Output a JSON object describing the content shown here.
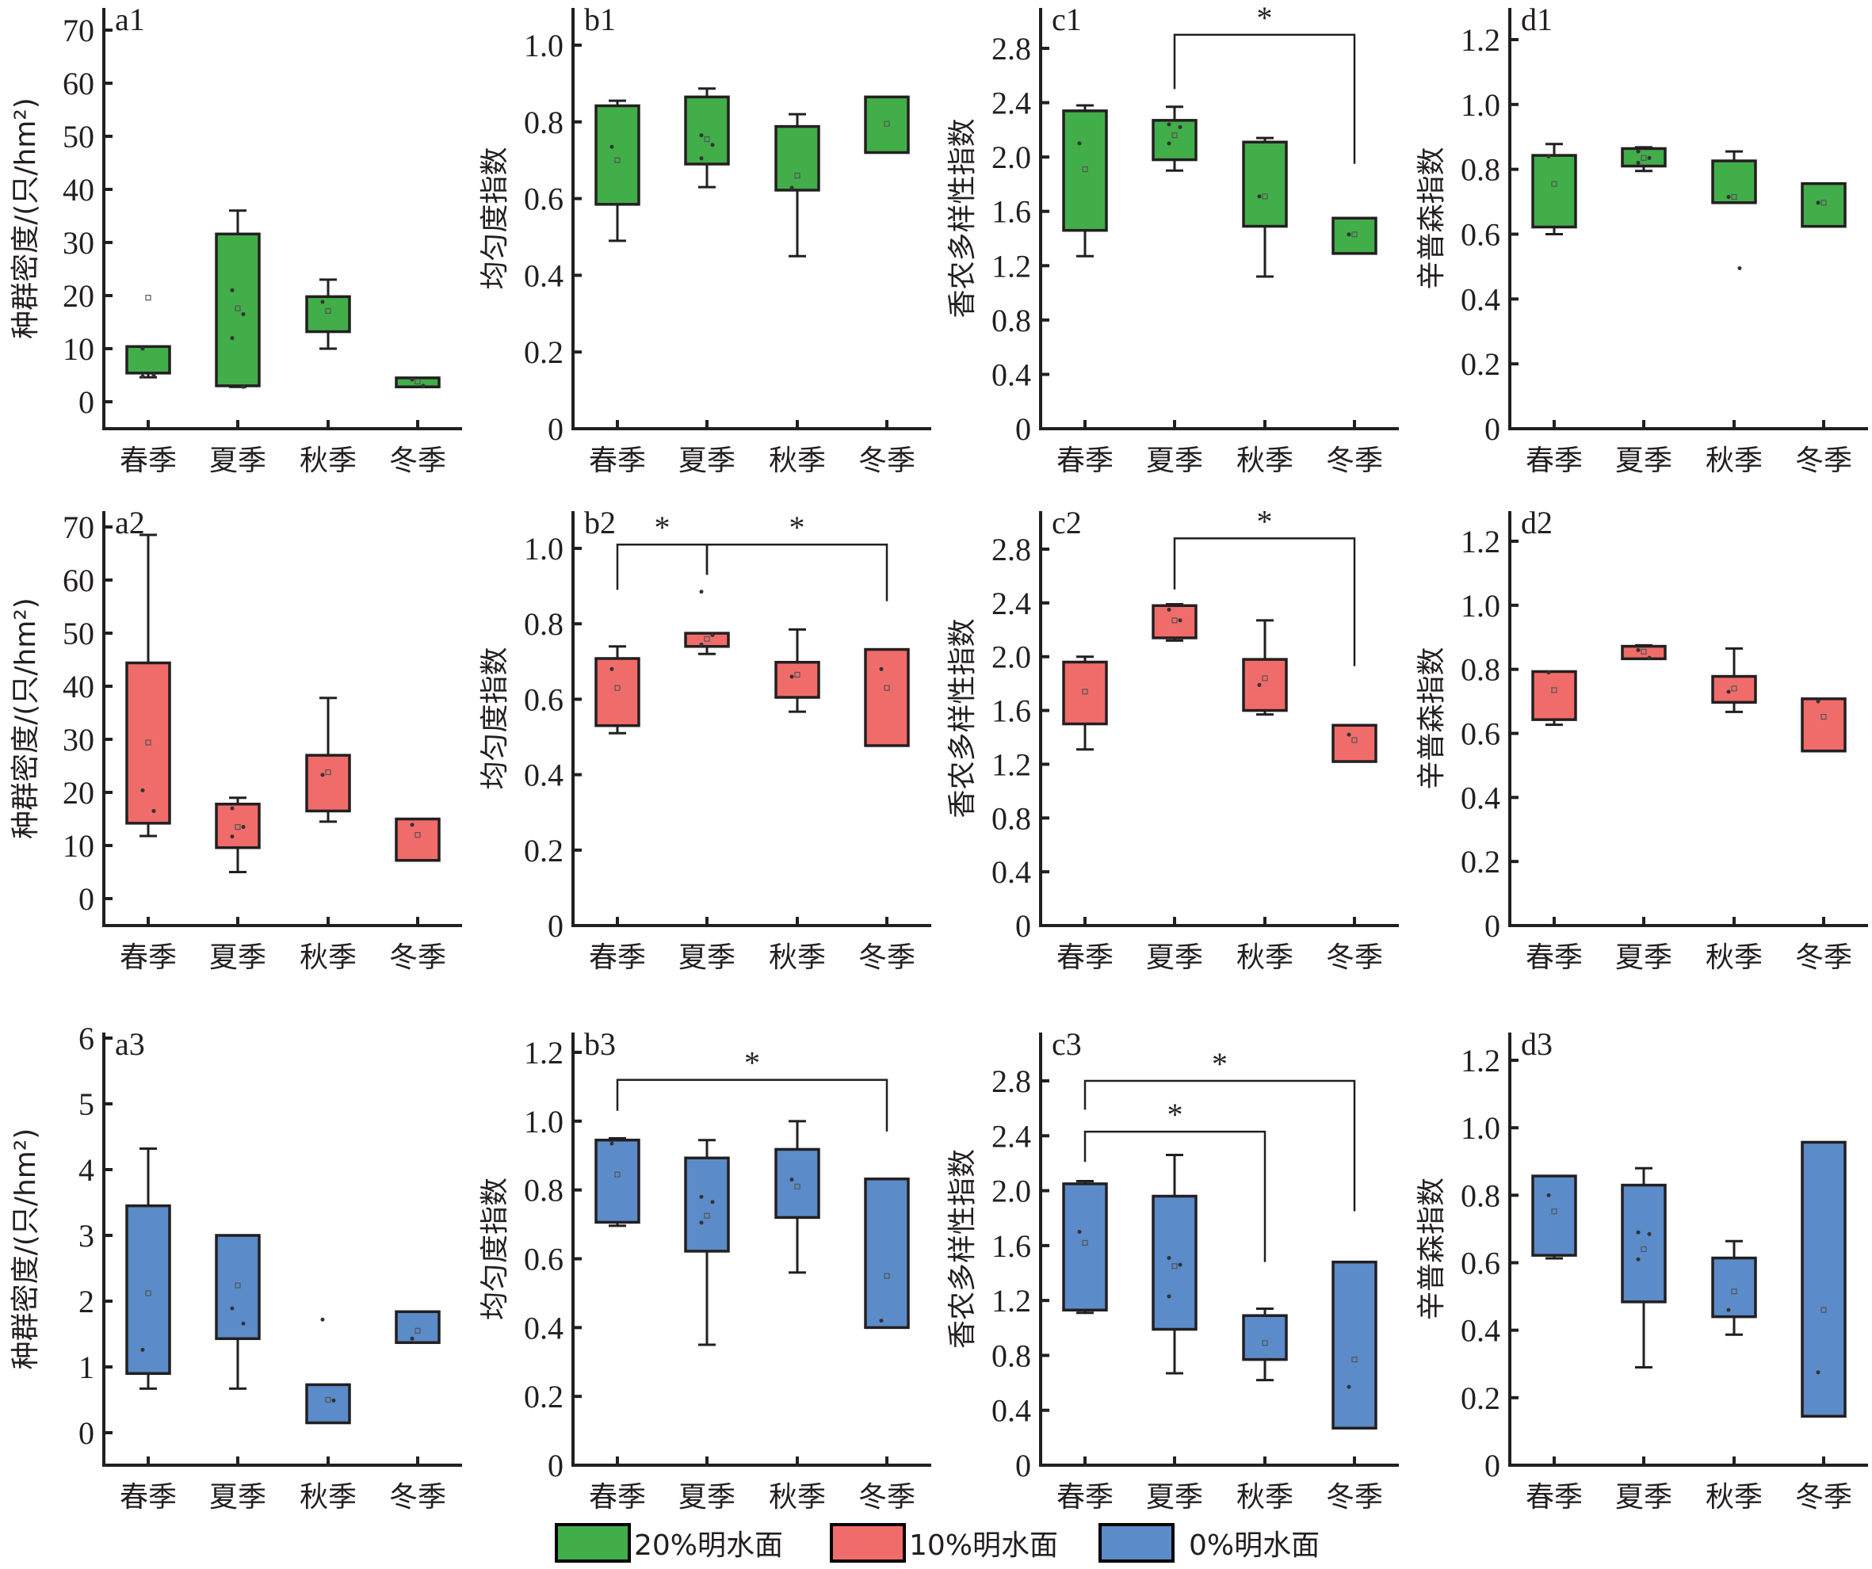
{
  "figure": {
    "categories": [
      "春季",
      "夏季",
      "秋季",
      "冬季"
    ],
    "legend": [
      {
        "label": "20%明水面",
        "color": "#41ae49"
      },
      {
        "label": "10%明水面",
        "color": "#f06c6a"
      },
      {
        "label": "0%明水面",
        "color": "#5b8bc9"
      }
    ],
    "ylabels": {
      "a": "种群密度/(只/hm²)",
      "b": "均匀度指数",
      "c": "香农多样性指数",
      "d": "辛普森指数"
    }
  },
  "chart_data": [
    {
      "id": "a1",
      "type": "box",
      "panel_label": "a1",
      "metric": "a",
      "group": 0,
      "ylabel": "种群密度/(只/hm²)",
      "ylim": [
        -5,
        72
      ],
      "yticks": [
        0,
        10,
        20,
        30,
        40,
        50,
        60,
        70
      ],
      "yticklabels": [
        "0",
        "10",
        "20",
        "30",
        "40",
        "50",
        "60",
        "70"
      ],
      "categories": [
        "春季",
        "夏季",
        "秋季",
        "冬季"
      ],
      "boxes": [
        {
          "q1": 5.4,
          "q3": 10.4,
          "whisker_low": 4.6,
          "whisker_high": 10.4,
          "mean": 19.6,
          "points": [
            10.0,
            5.0,
            4.8
          ]
        },
        {
          "q1": 3.0,
          "q3": 31.6,
          "whisker_low": 2.8,
          "whisker_high": 36.0,
          "mean": 17.6,
          "points": [
            21.0,
            16.5,
            12.0,
            2.8
          ]
        },
        {
          "q1": 13.2,
          "q3": 19.8,
          "whisker_low": 10.0,
          "whisker_high": 23.0,
          "mean": 17.1,
          "points": [
            18.8
          ]
        },
        {
          "q1": 2.8,
          "q3": 4.5,
          "whisker_low": 2.8,
          "whisker_high": 4.5,
          "mean": 3.8,
          "points": [
            4.2,
            3.0
          ]
        }
      ],
      "significance": []
    },
    {
      "id": "b1",
      "type": "box",
      "panel_label": "b1",
      "metric": "b",
      "group": 0,
      "ylabel": "均匀度指数",
      "ylim": [
        0,
        1.1
      ],
      "yticks": [
        0,
        0.2,
        0.4,
        0.6,
        0.8,
        1.0
      ],
      "yticklabels": [
        "0",
        "0.2",
        "0.4",
        "0.6",
        "0.8",
        "1.0"
      ],
      "categories": [
        "春季",
        "夏季",
        "秋季",
        "冬季"
      ],
      "boxes": [
        {
          "q1": 0.585,
          "q3": 0.842,
          "whisker_low": 0.49,
          "whisker_high": 0.855,
          "mean": 0.7,
          "points": [
            0.735
          ]
        },
        {
          "q1": 0.69,
          "q3": 0.865,
          "whisker_low": 0.63,
          "whisker_high": 0.887,
          "mean": 0.755,
          "points": [
            0.765,
            0.74,
            0.705
          ]
        },
        {
          "q1": 0.622,
          "q3": 0.788,
          "whisker_low": 0.45,
          "whisker_high": 0.82,
          "mean": 0.66,
          "points": [
            0.628
          ]
        },
        {
          "q1": 0.72,
          "q3": 0.865,
          "whisker_low": 0.72,
          "whisker_high": 0.865,
          "mean": 0.795,
          "points": []
        }
      ],
      "significance": []
    },
    {
      "id": "c1",
      "type": "box",
      "panel_label": "c1",
      "metric": "c",
      "group": 0,
      "ylabel": "香农多样性指数",
      "ylim": [
        0,
        3.1
      ],
      "yticks": [
        0,
        0.4,
        0.8,
        1.2,
        1.6,
        2.0,
        2.4,
        2.8
      ],
      "yticklabels": [
        "0",
        "0.4",
        "0.8",
        "1.2",
        "1.6",
        "2.0",
        "2.4",
        "2.8"
      ],
      "categories": [
        "春季",
        "夏季",
        "秋季",
        "冬季"
      ],
      "boxes": [
        {
          "q1": 1.46,
          "q3": 2.34,
          "whisker_low": 1.27,
          "whisker_high": 2.38,
          "mean": 1.91,
          "points": [
            2.1
          ]
        },
        {
          "q1": 1.98,
          "q3": 2.27,
          "whisker_low": 1.9,
          "whisker_high": 2.37,
          "mean": 2.16,
          "points": [
            2.24,
            2.22,
            2.1
          ]
        },
        {
          "q1": 1.49,
          "q3": 2.11,
          "whisker_low": 1.12,
          "whisker_high": 2.14,
          "mean": 1.71,
          "points": [
            1.71
          ]
        },
        {
          "q1": 1.29,
          "q3": 1.55,
          "whisker_low": 1.29,
          "whisker_high": 1.55,
          "mean": 1.43,
          "points": [
            1.43
          ]
        }
      ],
      "significance": [
        {
          "from": 1,
          "to": 3,
          "label": "*",
          "level": 2.9,
          "left_end": 2.5,
          "right_end": 1.95
        }
      ]
    },
    {
      "id": "d1",
      "type": "box",
      "panel_label": "d1",
      "metric": "d",
      "group": 0,
      "ylabel": "辛普森指数",
      "ylim": [
        0,
        1.3
      ],
      "yticks": [
        0,
        0.2,
        0.4,
        0.6,
        0.8,
        1.0,
        1.2
      ],
      "yticklabels": [
        "0",
        "0.2",
        "0.4",
        "0.6",
        "0.8",
        "1.0",
        "1.2"
      ],
      "categories": [
        "春季",
        "夏季",
        "秋季",
        "冬季"
      ],
      "boxes": [
        {
          "q1": 0.622,
          "q3": 0.843,
          "whisker_low": 0.6,
          "whisker_high": 0.878,
          "mean": 0.755,
          "points": [
            0.84
          ]
        },
        {
          "q1": 0.81,
          "q3": 0.864,
          "whisker_low": 0.795,
          "whisker_high": 0.868,
          "mean": 0.835,
          "points": [
            0.855,
            0.835,
            0.82
          ]
        },
        {
          "q1": 0.697,
          "q3": 0.826,
          "whisker_low": 0.697,
          "whisker_high": 0.855,
          "mean": 0.715,
          "points": [
            0.715,
            0.495
          ]
        },
        {
          "q1": 0.624,
          "q3": 0.756,
          "whisker_low": 0.624,
          "whisker_high": 0.756,
          "mean": 0.697,
          "points": [
            0.697
          ]
        }
      ],
      "significance": []
    },
    {
      "id": "a2",
      "type": "box",
      "panel_label": "a2",
      "metric": "a",
      "group": 1,
      "ylabel": "种群密度/(只/hm²)",
      "ylim": [
        -5,
        72
      ],
      "yticks": [
        0,
        10,
        20,
        30,
        40,
        50,
        60,
        70
      ],
      "yticklabels": [
        "0",
        "10",
        "20",
        "30",
        "40",
        "50",
        "60",
        "70"
      ],
      "categories": [
        "春季",
        "夏季",
        "秋季",
        "冬季"
      ],
      "boxes": [
        {
          "q1": 14.2,
          "q3": 44.4,
          "whisker_low": 11.8,
          "whisker_high": 68.5,
          "mean": 29.4,
          "points": [
            20.4,
            16.5
          ]
        },
        {
          "q1": 9.6,
          "q3": 17.8,
          "whisker_low": 5.0,
          "whisker_high": 19.0,
          "mean": 13.5,
          "points": [
            17.0,
            13.5,
            11.7
          ]
        },
        {
          "q1": 16.5,
          "q3": 27.0,
          "whisker_low": 14.5,
          "whisker_high": 37.8,
          "mean": 23.8,
          "points": [
            23.3
          ]
        },
        {
          "q1": 7.2,
          "q3": 15.0,
          "whisker_low": 7.2,
          "whisker_high": 15.0,
          "mean": 12.0,
          "points": [
            13.9
          ]
        }
      ],
      "significance": []
    },
    {
      "id": "b2",
      "type": "box",
      "panel_label": "b2",
      "metric": "b",
      "group": 1,
      "ylabel": "均匀度指数",
      "ylim": [
        0,
        1.1
      ],
      "yticks": [
        0,
        0.2,
        0.4,
        0.6,
        0.8,
        1.0
      ],
      "yticklabels": [
        "0",
        "0.2",
        "0.4",
        "0.6",
        "0.8",
        "1.0"
      ],
      "categories": [
        "春季",
        "夏季",
        "秋季",
        "冬季"
      ],
      "boxes": [
        {
          "q1": 0.53,
          "q3": 0.708,
          "whisker_low": 0.51,
          "whisker_high": 0.74,
          "mean": 0.63,
          "points": [
            0.68
          ]
        },
        {
          "q1": 0.74,
          "q3": 0.775,
          "whisker_low": 0.72,
          "whisker_high": 0.775,
          "mean": 0.76,
          "points": [
            0.885,
            0.77,
            0.745
          ]
        },
        {
          "q1": 0.605,
          "q3": 0.698,
          "whisker_low": 0.567,
          "whisker_high": 0.785,
          "mean": 0.665,
          "points": [
            0.66
          ]
        },
        {
          "q1": 0.477,
          "q3": 0.732,
          "whisker_low": 0.477,
          "whisker_high": 0.732,
          "mean": 0.63,
          "points": [
            0.68
          ]
        }
      ],
      "significance": [
        {
          "from": 0,
          "to": 1,
          "label": "*",
          "level": 1.01,
          "left_end": 0.89,
          "right_end": 0.93
        },
        {
          "from": 1,
          "to": 3,
          "label": "*",
          "level": 1.01,
          "left_end": 0.93,
          "right_end": 0.86
        }
      ]
    },
    {
      "id": "c2",
      "type": "box",
      "panel_label": "c2",
      "metric": "c",
      "group": 1,
      "ylabel": "香农多样性指数",
      "ylim": [
        0,
        3.1
      ],
      "yticks": [
        0,
        0.4,
        0.8,
        1.2,
        1.6,
        2.0,
        2.4,
        2.8
      ],
      "yticklabels": [
        "0",
        "0.4",
        "0.8",
        "1.2",
        "1.6",
        "2.0",
        "2.4",
        "2.8"
      ],
      "categories": [
        "春季",
        "夏季",
        "秋季",
        "冬季"
      ],
      "boxes": [
        {
          "q1": 1.5,
          "q3": 1.96,
          "whisker_low": 1.31,
          "whisker_high": 2.0,
          "mean": 1.74,
          "points": []
        },
        {
          "q1": 2.14,
          "q3": 2.38,
          "whisker_low": 2.12,
          "whisker_high": 2.39,
          "mean": 2.27,
          "points": [
            2.35,
            2.27
          ]
        },
        {
          "q1": 1.6,
          "q3": 1.98,
          "whisker_low": 1.57,
          "whisker_high": 2.27,
          "mean": 1.84,
          "points": [
            1.79
          ]
        },
        {
          "q1": 1.22,
          "q3": 1.49,
          "whisker_low": 1.22,
          "whisker_high": 1.49,
          "mean": 1.38,
          "points": [
            1.42
          ]
        }
      ],
      "significance": [
        {
          "from": 1,
          "to": 3,
          "label": "*",
          "level": 2.88,
          "left_end": 2.5,
          "right_end": 1.93
        }
      ]
    },
    {
      "id": "d2",
      "type": "box",
      "panel_label": "d2",
      "metric": "d",
      "group": 1,
      "ylabel": "辛普森指数",
      "ylim": [
        0,
        1.3
      ],
      "yticks": [
        0,
        0.2,
        0.4,
        0.6,
        0.8,
        1.0,
        1.2
      ],
      "yticklabels": [
        "0",
        "0.2",
        "0.4",
        "0.6",
        "0.8",
        "1.0",
        "1.2"
      ],
      "categories": [
        "春季",
        "夏季",
        "秋季",
        "冬季"
      ],
      "boxes": [
        {
          "q1": 0.643,
          "q3": 0.793,
          "whisker_low": 0.627,
          "whisker_high": 0.793,
          "mean": 0.735,
          "points": [
            0.79
          ]
        },
        {
          "q1": 0.833,
          "q3": 0.872,
          "whisker_low": 0.833,
          "whisker_high": 0.875,
          "mean": 0.855,
          "points": [
            0.86,
            0.836
          ]
        },
        {
          "q1": 0.697,
          "q3": 0.778,
          "whisker_low": 0.667,
          "whisker_high": 0.865,
          "mean": 0.74,
          "points": [
            0.73
          ]
        },
        {
          "q1": 0.545,
          "q3": 0.708,
          "whisker_low": 0.545,
          "whisker_high": 0.708,
          "mean": 0.652,
          "points": [
            0.7
          ]
        }
      ],
      "significance": []
    },
    {
      "id": "a3",
      "type": "box",
      "panel_label": "a3",
      "metric": "a",
      "group": 2,
      "ylabel": "种群密度/(只/hm²)",
      "ylim": [
        -0.5,
        6.1
      ],
      "yticks": [
        0,
        1,
        2,
        3,
        4,
        5,
        6
      ],
      "yticklabels": [
        "0",
        "1",
        "2",
        "3",
        "4",
        "5",
        "6"
      ],
      "categories": [
        "春季",
        "夏季",
        "秋季",
        "冬季"
      ],
      "boxes": [
        {
          "q1": 0.9,
          "q3": 3.45,
          "whisker_low": 0.67,
          "whisker_high": 4.32,
          "mean": 2.12,
          "points": [
            1.26
          ]
        },
        {
          "q1": 1.43,
          "q3": 3.0,
          "whisker_low": 0.67,
          "whisker_high": 3.0,
          "mean": 2.24,
          "points": [
            1.89,
            1.66
          ]
        },
        {
          "q1": 0.15,
          "q3": 0.73,
          "whisker_low": 0.15,
          "whisker_high": 0.73,
          "mean": 0.5,
          "points": [
            1.72,
            0.49
          ]
        },
        {
          "q1": 1.37,
          "q3": 1.84,
          "whisker_low": 1.37,
          "whisker_high": 1.84,
          "mean": 1.55,
          "points": [
            1.43
          ]
        }
      ],
      "significance": []
    },
    {
      "id": "b3",
      "type": "box",
      "panel_label": "b3",
      "metric": "b",
      "group": 2,
      "ylabel": "均匀度指数",
      "ylim": [
        0,
        1.25
      ],
      "yticks": [
        0,
        0.2,
        0.4,
        0.6,
        0.8,
        1.0,
        1.2
      ],
      "yticklabels": [
        "0",
        "0.2",
        "0.4",
        "0.6",
        "0.8",
        "1.0",
        "1.2"
      ],
      "categories": [
        "春季",
        "夏季",
        "秋季",
        "冬季"
      ],
      "boxes": [
        {
          "q1": 0.706,
          "q3": 0.945,
          "whisker_low": 0.696,
          "whisker_high": 0.95,
          "mean": 0.845,
          "points": [
            0.935
          ]
        },
        {
          "q1": 0.622,
          "q3": 0.893,
          "whisker_low": 0.35,
          "whisker_high": 0.945,
          "mean": 0.725,
          "points": [
            0.78,
            0.765,
            0.705
          ]
        },
        {
          "q1": 0.72,
          "q3": 0.918,
          "whisker_low": 0.56,
          "whisker_high": 1.0,
          "mean": 0.81,
          "points": [
            0.83
          ]
        },
        {
          "q1": 0.4,
          "q3": 0.832,
          "whisker_low": 0.4,
          "whisker_high": 0.832,
          "mean": 0.55,
          "points": [
            0.42
          ]
        }
      ],
      "significance": [
        {
          "from": 0,
          "to": 3,
          "label": "*",
          "level": 1.12,
          "left_end": 1.03,
          "right_end": 0.97
        }
      ]
    },
    {
      "id": "c3",
      "type": "box",
      "panel_label": "c3",
      "metric": "c",
      "group": 2,
      "ylabel": "香农多样性指数",
      "ylim": [
        0,
        3.1
      ],
      "yticks": [
        0,
        0.4,
        0.8,
        1.2,
        1.6,
        2.0,
        2.4,
        2.8
      ],
      "yticklabels": [
        "0",
        "0.4",
        "0.8",
        "1.2",
        "1.6",
        "2.0",
        "2.4",
        "2.8"
      ],
      "categories": [
        "春季",
        "夏季",
        "秋季",
        "冬季"
      ],
      "boxes": [
        {
          "q1": 1.13,
          "q3": 2.05,
          "whisker_low": 1.11,
          "whisker_high": 2.07,
          "mean": 1.62,
          "points": [
            1.7
          ]
        },
        {
          "q1": 0.99,
          "q3": 1.96,
          "whisker_low": 0.67,
          "whisker_high": 2.26,
          "mean": 1.45,
          "points": [
            1.51,
            1.46,
            1.23
          ]
        },
        {
          "q1": 0.77,
          "q3": 1.09,
          "whisker_low": 0.62,
          "whisker_high": 1.14,
          "mean": 0.89,
          "points": []
        },
        {
          "q1": 0.27,
          "q3": 1.48,
          "whisker_low": 0.27,
          "whisker_high": 1.48,
          "mean": 0.77,
          "points": [
            0.57
          ]
        }
      ],
      "significance": [
        {
          "from": 0,
          "to": 3,
          "label": "*",
          "level": 2.8,
          "left_end": 2.59,
          "right_end": 1.85
        },
        {
          "from": 0,
          "to": 2,
          "label": "*",
          "level": 2.43,
          "left_end": 2.21,
          "right_end": 1.48
        }
      ]
    },
    {
      "id": "d3",
      "type": "box",
      "panel_label": "d3",
      "metric": "d",
      "group": 2,
      "ylabel": "辛普森指数",
      "ylim": [
        0,
        1.3
      ],
      "yticks": [
        0,
        0.2,
        0.4,
        0.6,
        0.8,
        1.0,
        1.2
      ],
      "yticklabels": [
        "0",
        "0.2",
        "0.4",
        "0.6",
        "0.8",
        "1.0",
        "1.2"
      ],
      "categories": [
        "春季",
        "夏季",
        "秋季",
        "冬季"
      ],
      "boxes": [
        {
          "q1": 0.622,
          "q3": 0.857,
          "whisker_low": 0.613,
          "whisker_high": 0.857,
          "mean": 0.752,
          "points": [
            0.8
          ]
        },
        {
          "q1": 0.484,
          "q3": 0.83,
          "whisker_low": 0.29,
          "whisker_high": 0.88,
          "mean": 0.64,
          "points": [
            0.69,
            0.685,
            0.61
          ]
        },
        {
          "q1": 0.44,
          "q3": 0.614,
          "whisker_low": 0.387,
          "whisker_high": 0.664,
          "mean": 0.515,
          "points": [
            0.46
          ]
        },
        {
          "q1": 0.145,
          "q3": 0.957,
          "whisker_low": 0.145,
          "whisker_high": 0.957,
          "mean": 0.46,
          "points": [
            0.275
          ]
        }
      ],
      "significance": []
    }
  ]
}
